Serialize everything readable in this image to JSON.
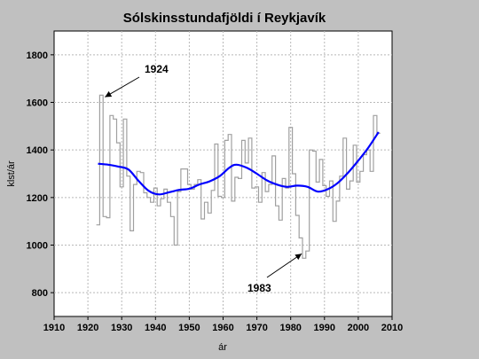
{
  "chart_data": {
    "type": "line",
    "title": "Sólskinsstundafjöldi í Reykjavík",
    "xlabel": "ár",
    "ylabel": "klst/ár",
    "xlim": [
      1910,
      2010
    ],
    "ylim": [
      700,
      1900
    ],
    "x_ticks": [
      1910,
      1920,
      1930,
      1940,
      1950,
      1960,
      1970,
      1980,
      1990,
      2000,
      2010
    ],
    "y_ticks": [
      800,
      1000,
      1200,
      1400,
      1600,
      1800
    ],
    "grid": true,
    "colors": {
      "annual": "#a0a0a0",
      "smooth": "#0000ff",
      "plot_bg": "#ffffff",
      "page_bg": "#c0c0c0"
    },
    "series": [
      {
        "style": "step",
        "x": [
          1923,
          1924,
          1925,
          1926,
          1927,
          1928,
          1929,
          1930,
          1931,
          1932,
          1933,
          1934,
          1935,
          1936,
          1937,
          1938,
          1939,
          1940,
          1941,
          1942,
          1943,
          1944,
          1945,
          1946,
          1947,
          1948,
          1949,
          1950,
          1951,
          1952,
          1953,
          1954,
          1955,
          1956,
          1957,
          1958,
          1959,
          1960,
          1961,
          1962,
          1963,
          1964,
          1965,
          1966,
          1967,
          1968,
          1969,
          1970,
          1971,
          1972,
          1973,
          1974,
          1975,
          1976,
          1977,
          1978,
          1979,
          1980,
          1981,
          1982,
          1983,
          1984,
          1985,
          1986,
          1987,
          1988,
          1989,
          1990,
          1991,
          1992,
          1993,
          1994,
          1995,
          1996,
          1997,
          1998,
          1999,
          2000,
          2001,
          2002,
          2003,
          2004,
          2005,
          2006
        ],
        "values": [
          1085,
          1630,
          1120,
          1115,
          1545,
          1530,
          1430,
          1245,
          1530,
          1290,
          1060,
          1255,
          1310,
          1305,
          1220,
          1200,
          1180,
          1240,
          1165,
          1195,
          1235,
          1180,
          1120,
          1000,
          1225,
          1320,
          1320,
          1255,
          1235,
          1255,
          1275,
          1110,
          1180,
          1135,
          1230,
          1425,
          1205,
          1200,
          1440,
          1465,
          1185,
          1285,
          1280,
          1440,
          1345,
          1450,
          1240,
          1245,
          1180,
          1305,
          1225,
          1255,
          1375,
          1165,
          1105,
          1280,
          1240,
          1495,
          1300,
          1125,
          1030,
          945,
          975,
          1400,
          1395,
          1265,
          1360,
          1250,
          1205,
          1270,
          1100,
          1185,
          1290,
          1450,
          1235,
          1270,
          1420,
          1265,
          1310,
          1380,
          1400,
          1310,
          1545,
          1470
        ]
      },
      {
        "style": "smooth",
        "x": [
          1923,
          1926,
          1929,
          1932,
          1935,
          1938,
          1941,
          1944,
          1947,
          1950,
          1953,
          1956,
          1959,
          1962,
          1964,
          1967,
          1970,
          1973,
          1976,
          1979,
          1982,
          1985,
          1988,
          1991,
          1994,
          1997,
          2000,
          2003,
          2006
        ],
        "values": [
          1342,
          1338,
          1330,
          1318,
          1270,
          1228,
          1213,
          1222,
          1232,
          1237,
          1255,
          1268,
          1290,
          1327,
          1338,
          1325,
          1300,
          1272,
          1254,
          1245,
          1250,
          1245,
          1225,
          1235,
          1262,
          1305,
          1355,
          1410,
          1475
        ]
      }
    ],
    "annotations": [
      {
        "text": "1924",
        "x": 1924,
        "y": 1630
      },
      {
        "text": "1983",
        "x": 1983,
        "y": 945
      }
    ]
  }
}
